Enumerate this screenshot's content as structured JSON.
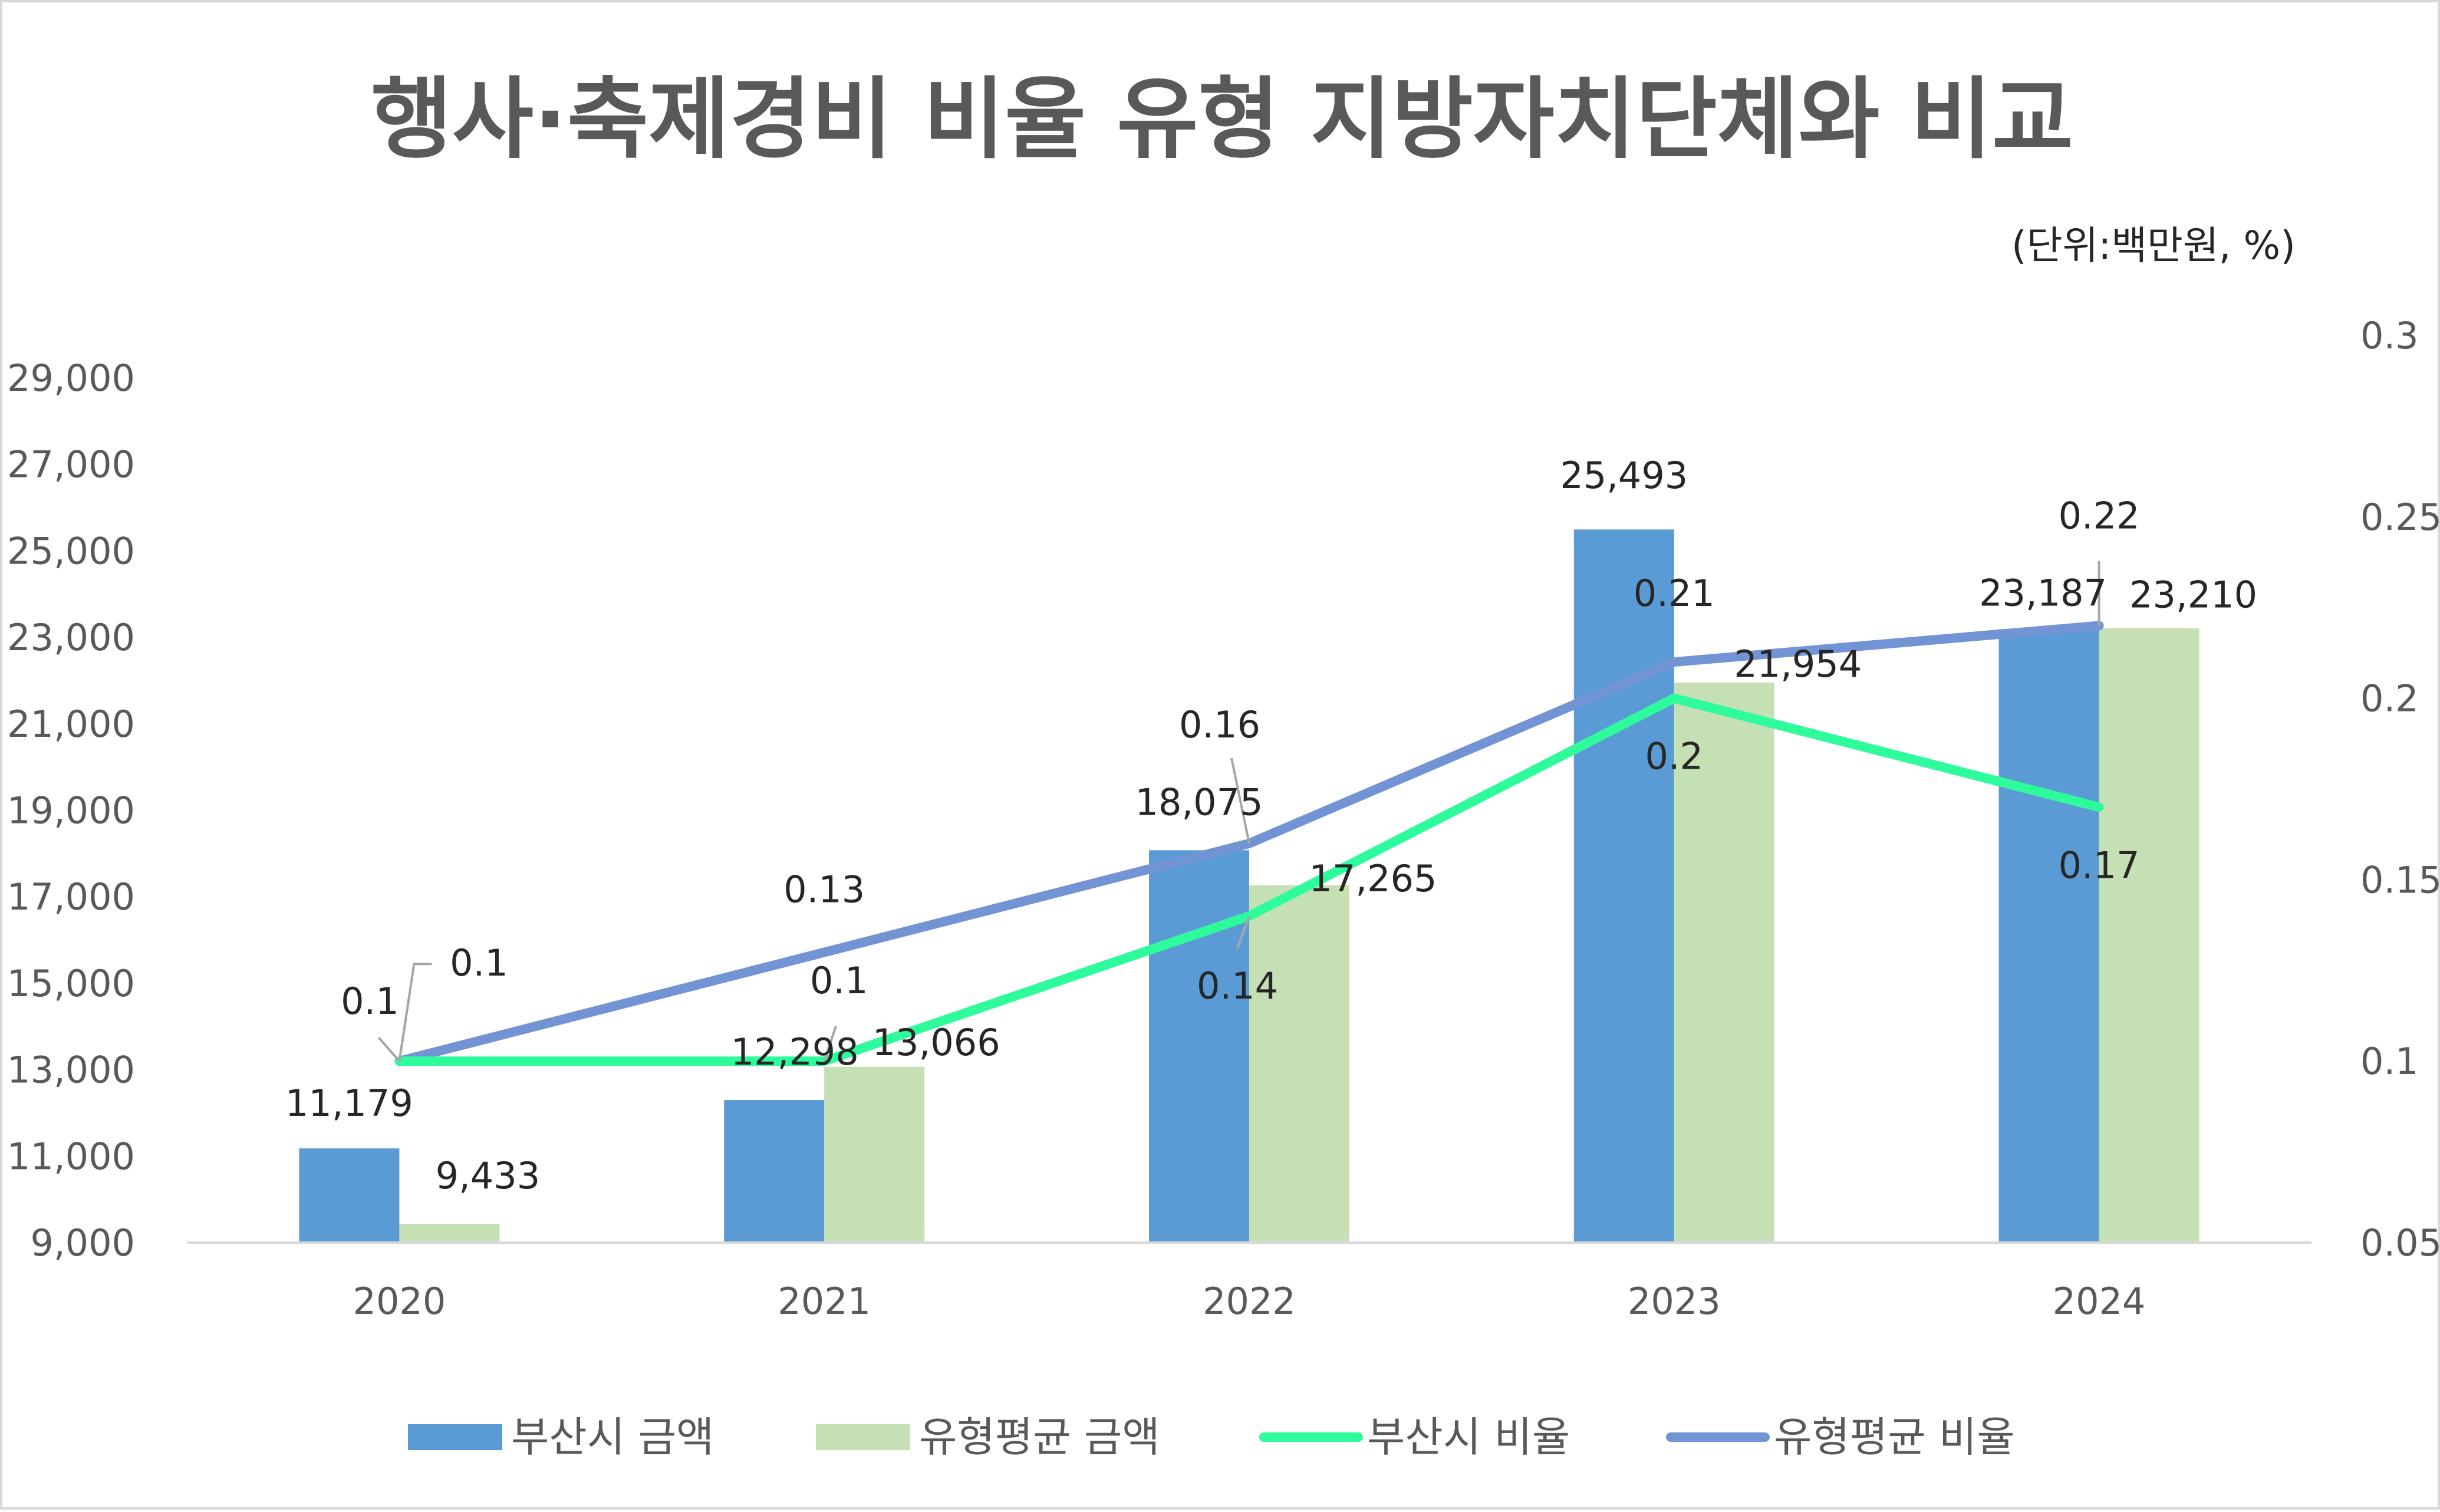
{
  "chart_data": {
    "title": "행사·축제경비 비율 유형 지방자치단체와 비교",
    "unit_note": "(단위:백만원, %)",
    "categories": [
      "2020",
      "2021",
      "2022",
      "2023",
      "2024"
    ],
    "y_left": {
      "min": 9000,
      "max": 29000,
      "ticks": [
        "9,000",
        "11,000",
        "13,000",
        "15,000",
        "17,000",
        "19,000",
        "21,000",
        "23,000",
        "25,000",
        "27,000",
        "29,000"
      ],
      "tick_values": [
        9000,
        11000,
        13000,
        15000,
        17000,
        19000,
        21000,
        23000,
        25000,
        27000,
        29000
      ]
    },
    "y_right": {
      "min": 0.05,
      "max": 0.3,
      "ticks": [
        "0.05",
        "0.1",
        "0.15",
        "0.2",
        "0.25",
        "0.3"
      ],
      "tick_values": [
        0.05,
        0.1,
        0.15,
        0.2,
        0.25,
        0.3
      ]
    },
    "grid": false,
    "legend_position": "bottom",
    "series": [
      {
        "name": "부산시 금액",
        "type": "bar",
        "axis": "left",
        "color": "#5b9bd5",
        "values": [
          11179,
          12298,
          18075,
          25493,
          23187
        ],
        "labels": [
          "11,179",
          "12,298",
          "18,075",
          "25,493",
          "23,187"
        ]
      },
      {
        "name": "유형평균 금액",
        "type": "bar",
        "axis": "left",
        "color": "#c5e0b4",
        "values": [
          9433,
          13066,
          17265,
          21954,
          23210
        ],
        "labels": [
          "9,433",
          "13,066",
          "17,265",
          "21,954",
          "23,210"
        ]
      },
      {
        "name": "부산시 비율",
        "type": "line",
        "axis": "right",
        "color": "#2efc9c",
        "values": [
          0.1,
          0.1,
          0.14,
          0.2,
          0.17
        ],
        "labels": [
          "0.1",
          "0.1",
          "0.14",
          "0.2",
          "0.17"
        ]
      },
      {
        "name": "유형평균 비율",
        "type": "line",
        "axis": "right",
        "color": "#7294d4",
        "values": [
          0.1,
          0.13,
          0.16,
          0.21,
          0.22
        ],
        "labels": [
          "0.1",
          "0.13",
          "0.16",
          "0.21",
          "0.22"
        ]
      }
    ]
  }
}
